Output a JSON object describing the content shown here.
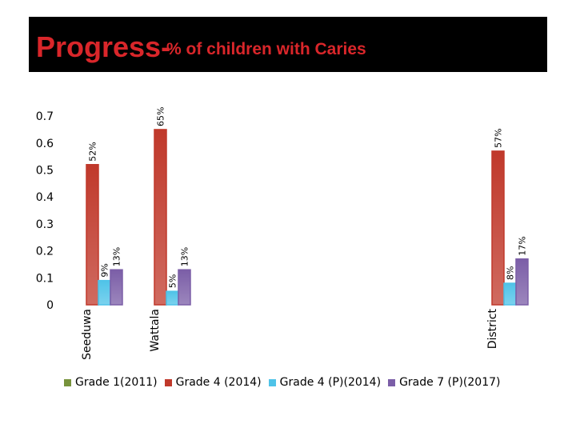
{
  "title": {
    "main": "Progress-",
    "sub": "% of children with Caries"
  },
  "colors": {
    "title_bg": "#000000",
    "title_text": "#d9262a"
  },
  "chart_data": {
    "type": "bar",
    "title": "Progress- % of children with Caries",
    "categories": [
      "Seeduwa",
      "Wattala",
      "District"
    ],
    "yticks": [
      "0",
      "0.1",
      "0.2",
      "0.3",
      "0.4",
      "0.5",
      "0.6",
      "0.7"
    ],
    "ylim": [
      0,
      0.7
    ],
    "grid": false,
    "legend_position": "bottom",
    "series": [
      {
        "name": "Grade 1(2011)",
        "color": "#77933c",
        "values": [
          null,
          null,
          null
        ],
        "labels": [
          "",
          "",
          ""
        ]
      },
      {
        "name": "Grade 4 (2014)",
        "color": "#c0392b",
        "values": [
          0.52,
          0.65,
          0.57
        ],
        "labels": [
          "52%",
          "65%",
          "57%"
        ]
      },
      {
        "name": "Grade 4 (P)(2014)",
        "color": "#4fc3e8",
        "values": [
          0.09,
          0.05,
          0.08
        ],
        "labels": [
          "9%",
          "5%",
          "8%"
        ]
      },
      {
        "name": "Grade 7 (P)(2017)",
        "color": "#7b5ea7",
        "values": [
          0.13,
          0.13,
          0.17
        ],
        "labels": [
          "13%",
          "13%",
          "17%"
        ]
      }
    ]
  }
}
